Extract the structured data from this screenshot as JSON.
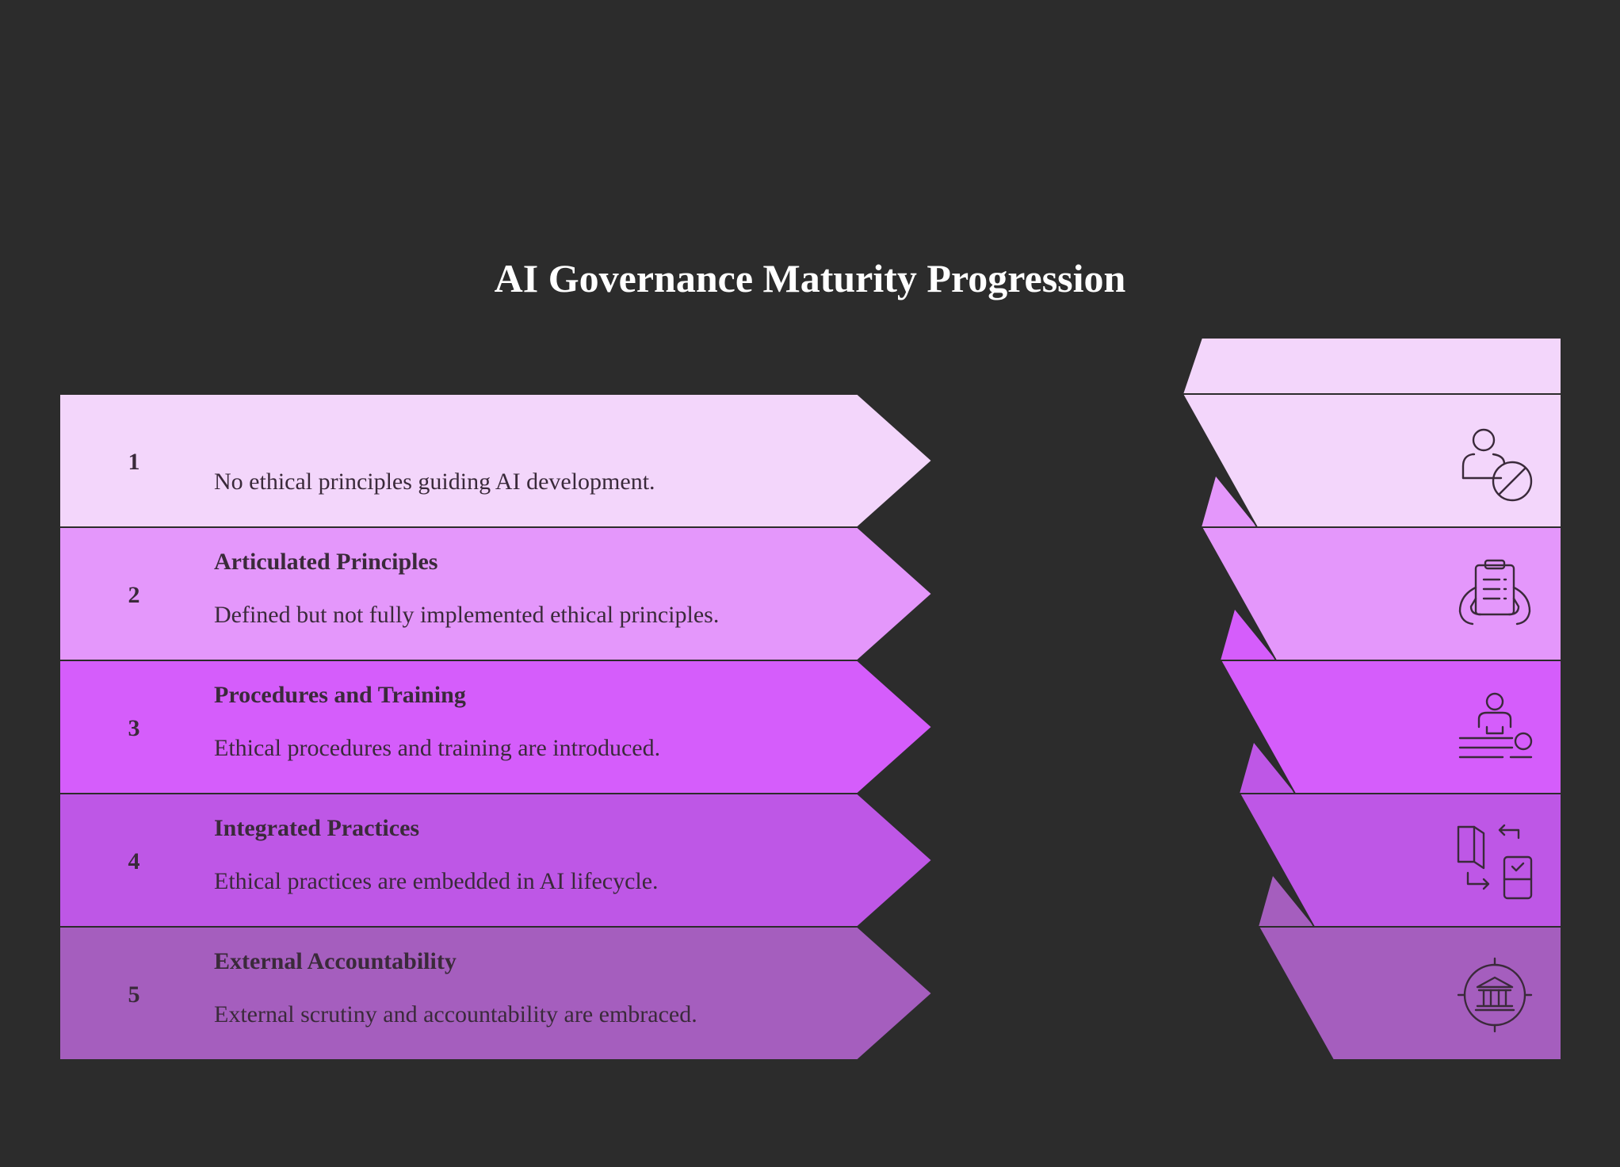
{
  "title": "AI Governance Maturity Progression",
  "colors": {
    "background": "#2c2c2c",
    "title": "#ffffff",
    "text": "#3a2a3a",
    "outline": "#2c2c2c",
    "icon_stroke": "#3a2a3a"
  },
  "stages": [
    {
      "number": "1",
      "heading": "",
      "description": "No ethical principles guiding AI development.",
      "color": "#f3d6fb",
      "fold_color": "#e497fb",
      "icon": "person-blocked-icon"
    },
    {
      "number": "2",
      "heading": "Articulated Principles",
      "description": "Defined but not fully implemented ethical principles.",
      "color": "#e497fb",
      "fold_color": "#d55dfb",
      "icon": "clipboard-in-hands-icon"
    },
    {
      "number": "3",
      "heading": "Procedures and Training",
      "description": "Ethical procedures and training are introduced.",
      "color": "#d55dfb",
      "fold_color": "#be57e6",
      "icon": "trainer-training-icon"
    },
    {
      "number": "4",
      "heading": "Integrated Practices",
      "description": "Ethical practices are embedded in AI lifecycle.",
      "color": "#be57e6",
      "fold_color": "#a55ebe",
      "icon": "door-phone-exchange-icon"
    },
    {
      "number": "5",
      "heading": "External Accountability",
      "description": "External scrutiny and accountability are embraced.",
      "color": "#a55ebe",
      "fold_color": "#a55ebe",
      "icon": "institution-target-icon"
    }
  ]
}
